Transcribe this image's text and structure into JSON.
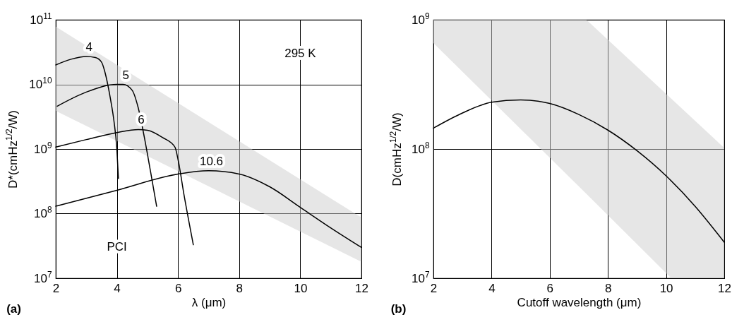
{
  "chart_data": [
    {
      "type": "line",
      "xlabel": "λ (μm)",
      "ylabel": "D*(cmHz$^{1/2}$/W)",
      "log": "y",
      "grid": true,
      "xlim": [
        2,
        12
      ],
      "xticks": [
        2,
        4,
        6,
        8,
        10,
        12
      ],
      "ylim": [
        10000000,
        100000000000
      ],
      "yticks": [
        {
          "value": 10000000,
          "label": "10$^{7}$"
        },
        {
          "value": 100000000,
          "label": "10$^{8}$"
        },
        {
          "value": 1000000000,
          "label": "10$^{9}$"
        },
        {
          "value": 10000000000,
          "label": "10$^{10}$"
        },
        {
          "value": 100000000000,
          "label": "10$^{11}$"
        }
      ],
      "series": [
        {
          "type": "area",
          "color": "#e6e6e6",
          "x": [
            2,
            12
          ],
          "values": [
            null,
            null
          ],
          "lower": [
            3900000000,
            18000000
          ],
          "upper": [
            78000000000,
            87000000
          ]
        },
        {
          "name": "4",
          "color": "#000000",
          "x": [
            2,
            2.5,
            3,
            3.3,
            3.5,
            3.6,
            3.7,
            3.8,
            3.9,
            4.0,
            4.05
          ],
          "values": [
            20000000000,
            24500000000,
            27000000000,
            26000000000,
            22000000000,
            16000000000,
            10000000000,
            5600000000,
            2800000000,
            980000000,
            350000000
          ]
        },
        {
          "name": "5",
          "color": "#000000",
          "x": [
            2.05,
            3,
            4,
            4.2,
            4.5,
            4.7,
            4.9,
            5.1,
            5.3
          ],
          "values": [
            4600000000,
            7600000000,
            10000000000,
            10000000000,
            8100000000,
            4300000000,
            1500000000,
            450000000,
            130000000
          ]
        },
        {
          "name": "6",
          "color": "#000000",
          "x": [
            2,
            3,
            4,
            4.7,
            5,
            5.5,
            5.9,
            6,
            6.2,
            6.5
          ],
          "values": [
            1070000000,
            1400000000,
            1800000000,
            2000000000,
            1950000000,
            1500000000,
            1070000000,
            690000000,
            190000000,
            33000000
          ]
        },
        {
          "name": "10.6",
          "color": "#000000",
          "x": [
            2,
            4,
            6,
            7,
            8,
            9,
            10,
            11,
            12
          ],
          "values": [
            130000000,
            230000000,
            410000000,
            460000000,
            410000000,
            260000000,
            125000000,
            60000000,
            30000000
          ]
        }
      ],
      "annotations": [
        "(a)",
        "295 K",
        "PCI"
      ]
    },
    {
      "type": "line",
      "xlabel": "Cutoff wavelength (μm)",
      "ylabel": "D(cmHz$^{1/2}$/W)",
      "log": "y",
      "grid": true,
      "xlim": [
        2,
        12
      ],
      "xticks": [
        2,
        4,
        6,
        8,
        10,
        12
      ],
      "ylim": [
        10000000,
        1000000000
      ],
      "yticks": [
        {
          "value": 10000000,
          "label": "10$^{7}$"
        },
        {
          "value": 100000000,
          "label": "10$^{8}$"
        },
        {
          "value": 1000000000,
          "label": "10$^{9}$"
        }
      ],
      "series": [
        {
          "type": "area",
          "color": "#e6e6e6",
          "x": [
            2,
            7.26,
            10.18,
            12
          ],
          "values": [
            null,
            null,
            null,
            null
          ],
          "lower": [
            660000000,
            45000000,
            10000000,
            10000000
          ],
          "upper": [
            1000000000,
            1000000000,
            245000000,
            102000000
          ]
        },
        {
          "color": "#000000",
          "x": [
            2,
            3,
            4,
            5,
            6,
            7,
            8,
            9,
            10,
            11,
            12
          ],
          "values": [
            145000000,
            190000000,
            230000000,
            240000000,
            225000000,
            185000000,
            140000000,
            97000000,
            62000000,
            36000000,
            19000000
          ]
        }
      ],
      "annotations": [
        "(b)"
      ]
    }
  ]
}
